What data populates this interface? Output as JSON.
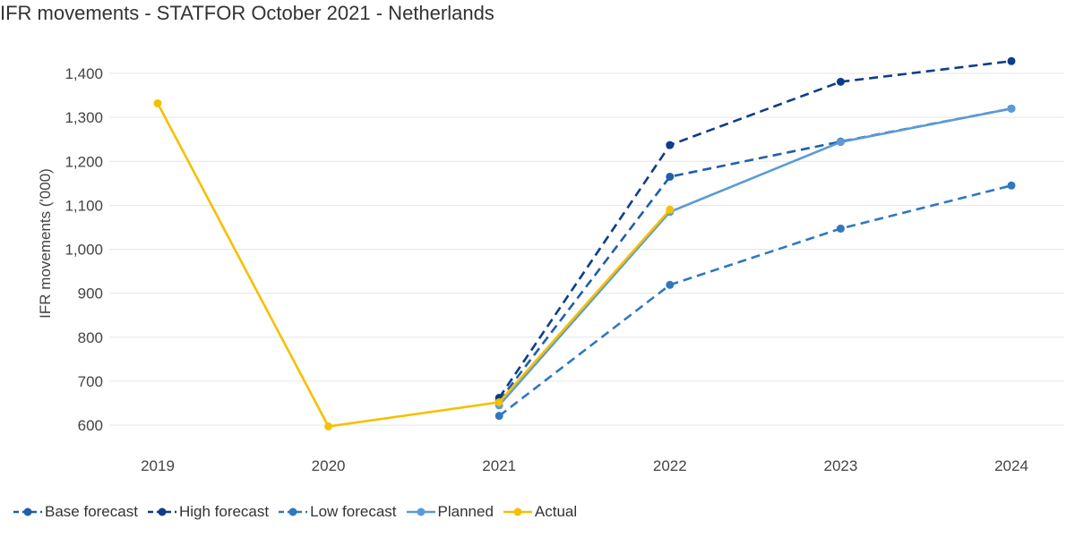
{
  "chart_data": {
    "type": "line",
    "title": "IFR movements - STATFOR October 2021 - Netherlands",
    "xlabel": "",
    "ylabel": "IFR movements ('000)",
    "categories": [
      "2019",
      "2020",
      "2021",
      "2022",
      "2023",
      "2024"
    ],
    "ylim": [
      560,
      1430
    ],
    "yticks": [
      600,
      700,
      800,
      900,
      1000,
      1100,
      1200,
      1300,
      1400
    ],
    "ytick_labels": [
      "600",
      "700",
      "800",
      "900",
      "1,000",
      "1,100",
      "1,200",
      "1,300",
      "1,400"
    ],
    "grid": true,
    "legend_position": "bottom-left",
    "series": [
      {
        "name": "Base forecast",
        "color": "#1f5fa9",
        "style": "dashed",
        "values": [
          null,
          null,
          655,
          1165,
          1245,
          1320
        ]
      },
      {
        "name": "High forecast",
        "color": "#0d3d8a",
        "style": "dashed",
        "values": [
          null,
          null,
          662,
          1237,
          1381,
          1428
        ]
      },
      {
        "name": "Low forecast",
        "color": "#2f78bf",
        "style": "dashed",
        "values": [
          null,
          null,
          621,
          919,
          1047,
          1145
        ]
      },
      {
        "name": "Planned",
        "color": "#5b9bd5",
        "style": "solid",
        "values": [
          null,
          null,
          645,
          1085,
          1244,
          1320
        ]
      },
      {
        "name": "Actual",
        "color": "#f5c000",
        "style": "solid",
        "values": [
          1332,
          597,
          652,
          1090,
          null,
          null
        ]
      }
    ]
  }
}
